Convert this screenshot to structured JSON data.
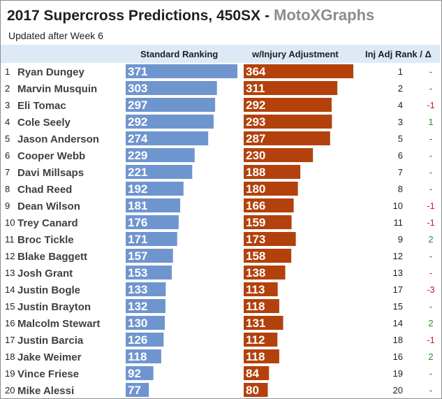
{
  "header": {
    "title": "2017 Supercross Predictions, 450SX",
    "dash": "-",
    "brand": "MotoXGraphs",
    "subtitle": "Updated after Week 6"
  },
  "columns": {
    "standard": "Standard Ranking",
    "injury": "w/Injury Adjustment",
    "adj_rank": "Inj Adj Rank / Δ"
  },
  "colors": {
    "standard_bar": "#6f95cf",
    "injury_bar": "#b3410c",
    "header_band": "#dde9f6",
    "delta_up": "#2e8b2e",
    "delta_down": "#cc1f1f",
    "delta_none": "#cc1f1f"
  },
  "chart_data": {
    "type": "bar",
    "max_value": 371,
    "series": [
      {
        "name": "Standard Ranking",
        "key": "standard"
      },
      {
        "name": "w/Injury Adjustment",
        "key": "injury"
      }
    ],
    "rows": [
      {
        "rank": "1",
        "rider": "Ryan Dungey",
        "standard": 371,
        "injury": 364,
        "adj_rank": "1",
        "delta": "-"
      },
      {
        "rank": "2",
        "rider": "Marvin Musquin",
        "standard": 303,
        "injury": 311,
        "adj_rank": "2",
        "delta": "-"
      },
      {
        "rank": "3",
        "rider": "Eli Tomac",
        "standard": 297,
        "injury": 292,
        "adj_rank": "4",
        "delta": "-1"
      },
      {
        "rank": "4",
        "rider": "Cole Seely",
        "standard": 292,
        "injury": 293,
        "adj_rank": "3",
        "delta": "1"
      },
      {
        "rank": "5",
        "rider": "Jason Anderson",
        "standard": 274,
        "injury": 287,
        "adj_rank": "5",
        "delta": "-"
      },
      {
        "rank": "6",
        "rider": "Cooper Webb",
        "standard": 229,
        "injury": 230,
        "adj_rank": "6",
        "delta": "-"
      },
      {
        "rank": "7",
        "rider": "Davi Millsaps",
        "standard": 221,
        "injury": 188,
        "adj_rank": "7",
        "delta": "-"
      },
      {
        "rank": "8",
        "rider": "Chad Reed",
        "standard": 192,
        "injury": 180,
        "adj_rank": "8",
        "delta": "-"
      },
      {
        "rank": "9",
        "rider": "Dean Wilson",
        "standard": 181,
        "injury": 166,
        "adj_rank": "10",
        "delta": "-1"
      },
      {
        "rank": "10",
        "rider": "Trey Canard",
        "standard": 176,
        "injury": 159,
        "adj_rank": "11",
        "delta": "-1"
      },
      {
        "rank": "11",
        "rider": "Broc Tickle",
        "standard": 171,
        "injury": 173,
        "adj_rank": "9",
        "delta": "2"
      },
      {
        "rank": "12",
        "rider": "Blake Baggett",
        "standard": 157,
        "injury": 158,
        "adj_rank": "12",
        "delta": "-"
      },
      {
        "rank": "13",
        "rider": "Josh Grant",
        "standard": 153,
        "injury": 138,
        "adj_rank": "13",
        "delta": "-"
      },
      {
        "rank": "14",
        "rider": "Justin Bogle",
        "standard": 133,
        "injury": 113,
        "adj_rank": "17",
        "delta": "-3"
      },
      {
        "rank": "15",
        "rider": "Justin Brayton",
        "standard": 132,
        "injury": 118,
        "adj_rank": "15",
        "delta": "-"
      },
      {
        "rank": "16",
        "rider": "Malcolm Stewart",
        "standard": 130,
        "injury": 131,
        "adj_rank": "14",
        "delta": "2"
      },
      {
        "rank": "17",
        "rider": "Justin Barcia",
        "standard": 126,
        "injury": 112,
        "adj_rank": "18",
        "delta": "-1"
      },
      {
        "rank": "18",
        "rider": "Jake Weimer",
        "standard": 118,
        "injury": 118,
        "adj_rank": "16",
        "delta": "2"
      },
      {
        "rank": "19",
        "rider": "Vince Friese",
        "standard": 92,
        "injury": 84,
        "adj_rank": "19",
        "delta": "-"
      },
      {
        "rank": "20",
        "rider": "Mike Alessi",
        "standard": 77,
        "injury": 80,
        "adj_rank": "20",
        "delta": "-"
      }
    ]
  }
}
